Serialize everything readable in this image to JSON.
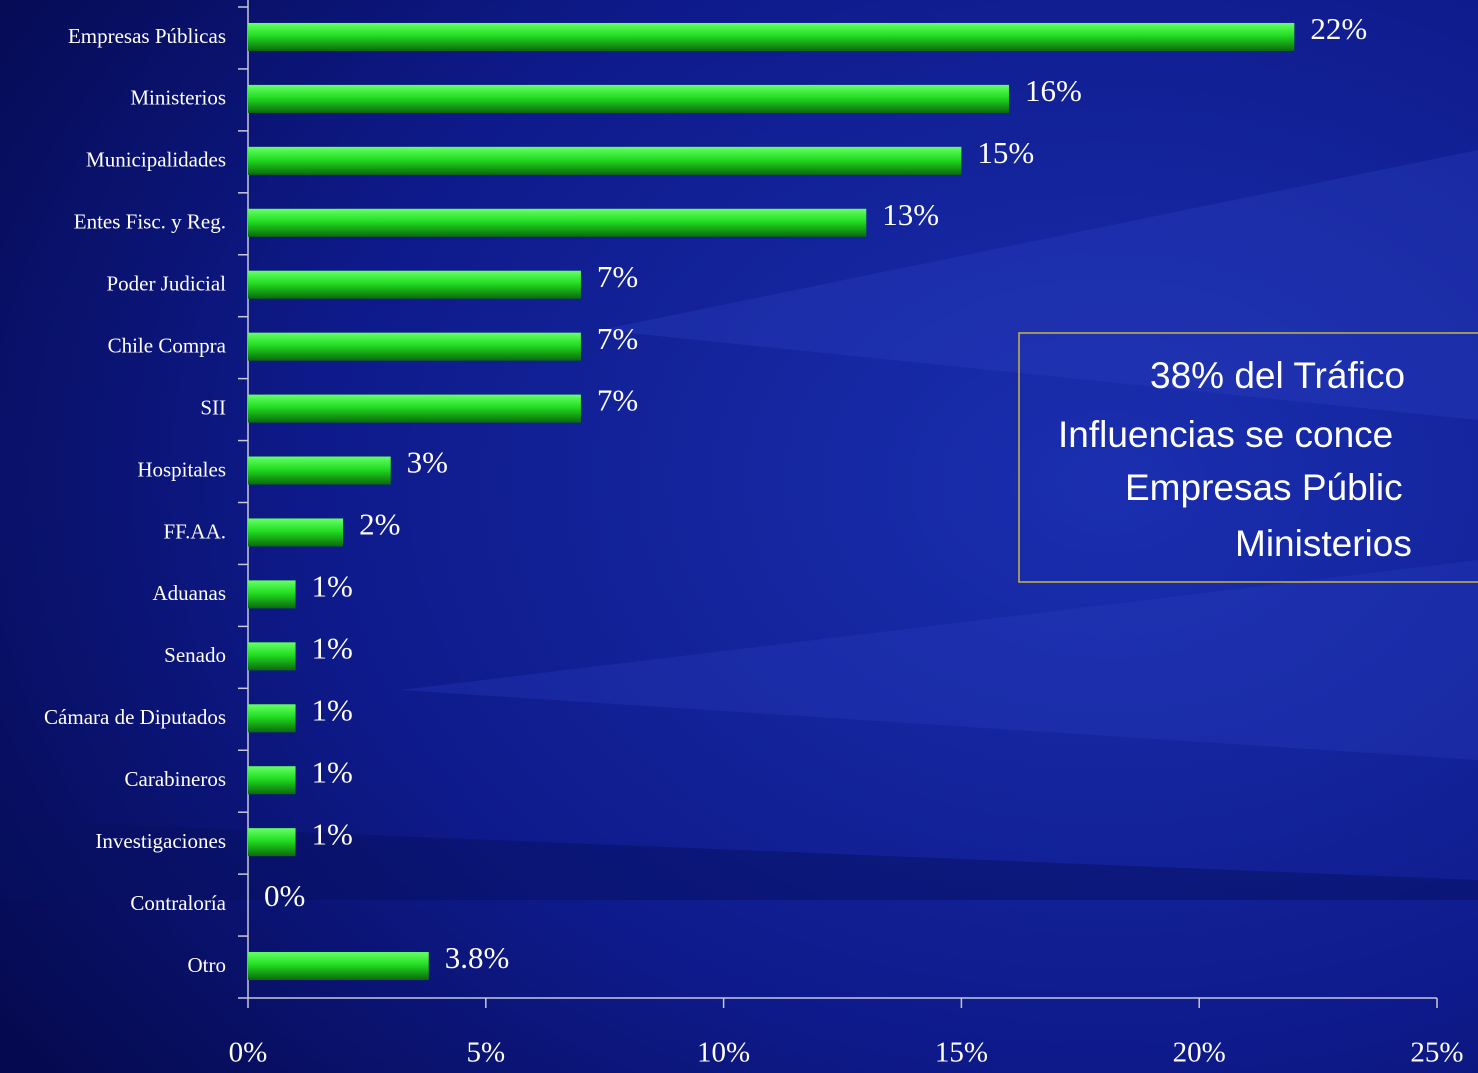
{
  "chart_data": {
    "type": "bar",
    "orientation": "horizontal",
    "categories": [
      "Empresas Públicas",
      "Ministerios",
      "Municipalidades",
      "Entes Fisc. y Reg.",
      "Poder Judicial",
      "Chile Compra",
      "SII",
      "Hospitales",
      "FF.AA.",
      "Aduanas",
      "Senado",
      "Cámara de Diputados",
      "Carabineros",
      "Investigaciones",
      "Contraloría",
      "Otro"
    ],
    "values": [
      22,
      16,
      15,
      13,
      7,
      7,
      7,
      3,
      2,
      1,
      1,
      1,
      1,
      1,
      0,
      3.8
    ],
    "value_labels": [
      "22%",
      "16%",
      "15%",
      "13%",
      "7%",
      "7%",
      "7%",
      "3%",
      "2%",
      "1%",
      "1%",
      "1%",
      "1%",
      "1%",
      "0%",
      "3.8%"
    ],
    "color": "#22dd22",
    "xlim": [
      0,
      25
    ],
    "xticks": [
      {
        "value": 0,
        "label": "0%"
      },
      {
        "value": 5,
        "label": "5%"
      },
      {
        "value": 10,
        "label": "10%"
      },
      {
        "value": 15,
        "label": "15%"
      },
      {
        "value": 20,
        "label": "20%"
      },
      {
        "value": 25,
        "label": "25%"
      }
    ],
    "annotation": [
      "38% del Tráfico",
      "Influencias se conce",
      "Empresas Públic",
      "Ministerios"
    ]
  }
}
